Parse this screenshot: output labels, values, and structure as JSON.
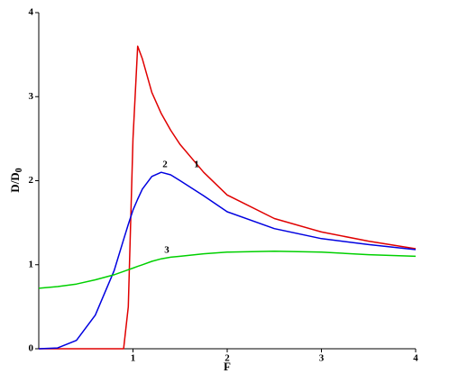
{
  "chart_data": {
    "type": "line",
    "xlabel": "F",
    "ylabel": "D/D",
    "ylabel_subscript": "0",
    "x": [
      0,
      0.2,
      0.4,
      0.6,
      0.8,
      0.9,
      0.95,
      1,
      1.05,
      1.1,
      1.2,
      1.3,
      1.4,
      1.5,
      1.75,
      2,
      2.5,
      3,
      3.5,
      4
    ],
    "series": [
      {
        "name": "1",
        "color": "#e00000",
        "values": [
          0,
          0,
          0,
          0,
          0,
          0,
          0.5,
          2.5,
          3.6,
          3.45,
          3.05,
          2.8,
          2.6,
          2.43,
          2.1,
          1.83,
          1.55,
          1.39,
          1.28,
          1.19
        ]
      },
      {
        "name": "2",
        "color": "#0000e0",
        "values": [
          0,
          0.01,
          0.1,
          0.4,
          0.93,
          1.3,
          1.48,
          1.65,
          1.78,
          1.9,
          2.05,
          2.1,
          2.07,
          2.0,
          1.82,
          1.63,
          1.43,
          1.31,
          1.24,
          1.18
        ]
      },
      {
        "name": "3",
        "color": "#00d000",
        "values": [
          0.72,
          0.74,
          0.77,
          0.82,
          0.88,
          0.92,
          0.94,
          0.96,
          0.98,
          1.0,
          1.04,
          1.07,
          1.09,
          1.1,
          1.13,
          1.15,
          1.16,
          1.15,
          1.12,
          1.1
        ]
      }
    ],
    "xlim": [
      0,
      4
    ],
    "ylim": [
      0,
      4
    ],
    "xticks": [
      1,
      2,
      3,
      4
    ],
    "yticks": [
      0,
      1,
      2,
      3,
      4
    ]
  }
}
